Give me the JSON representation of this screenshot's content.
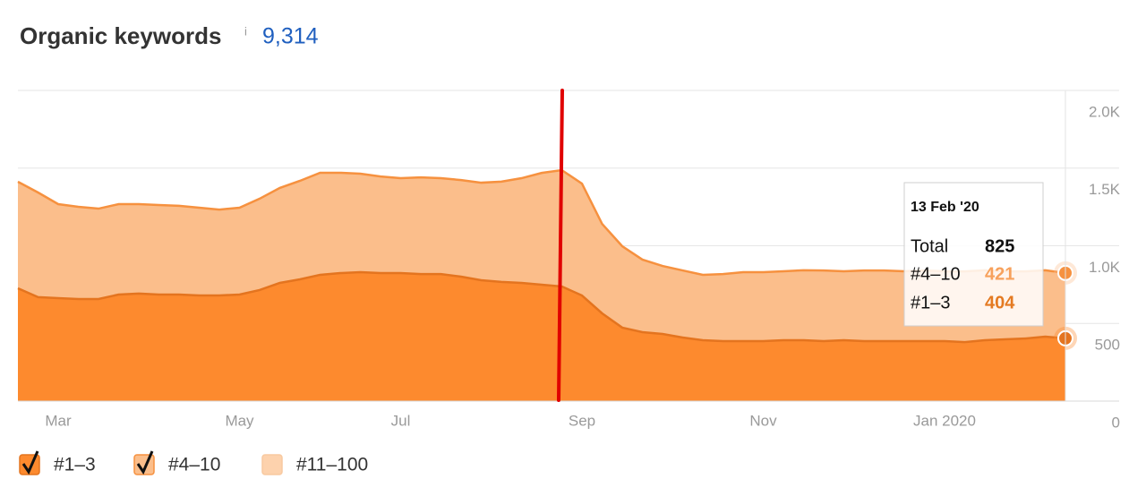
{
  "chart_data": {
    "type": "stacked_area",
    "title": "Organic keywords",
    "info_icon": "i",
    "headline_value": "9,314",
    "categories": [
      null,
      null,
      "Mar",
      null,
      null,
      null,
      null,
      null,
      null,
      null,
      null,
      "May",
      null,
      null,
      null,
      null,
      null,
      null,
      null,
      "Jul",
      null,
      null,
      null,
      null,
      null,
      null,
      null,
      null,
      "Sep",
      null,
      null,
      null,
      null,
      null,
      null,
      null,
      null,
      "Nov",
      null,
      null,
      null,
      null,
      null,
      null,
      null,
      null,
      "Jan 2020",
      null,
      null,
      null,
      null,
      null,
      null
    ],
    "series": [
      {
        "name": "#1–3",
        "color": "#fd8a2e",
        "line_color": "#e4741f",
        "visible": true,
        "values": [
          726,
          669,
          663,
          657,
          657,
          686,
          692,
          686,
          686,
          680,
          680,
          686,
          715,
          761,
          784,
          813,
          824,
          830,
          824,
          824,
          818,
          818,
          801,
          778,
          767,
          761,
          749,
          738,
          680,
          565,
          473,
          444,
          432,
          409,
          392,
          386,
          386,
          386,
          392,
          392,
          386,
          392,
          386,
          386,
          386,
          386,
          386,
          380,
          392,
          398,
          403,
          415,
          404
        ]
      },
      {
        "name": "#4–10",
        "color": "#fbbe8b",
        "line_color": "#f6913f",
        "visible": true,
        "values": [
          686,
          674,
          605,
          594,
          582,
          582,
          576,
          576,
          571,
          565,
          553,
          559,
          588,
          611,
          634,
          657,
          646,
          634,
          622,
          611,
          622,
          617,
          622,
          628,
          646,
          674,
          720,
          749,
          720,
          576,
          524,
          467,
          438,
          432,
          421,
          432,
          444,
          444,
          444,
          450,
          455,
          444,
          455,
          455,
          450,
          455,
          450,
          455,
          450,
          438,
          432,
          427,
          421
        ]
      },
      {
        "name": "#11–100",
        "color": "#fdd2ad",
        "visible": false
      }
    ],
    "ylim": [
      0,
      2000
    ],
    "yticks": [
      0,
      500,
      {
        "value": 1000,
        "label": "1.0K"
      },
      {
        "value": 1500,
        "label": "1.5K"
      },
      {
        "value": 2000,
        "label": "2.0K"
      }
    ],
    "grid": true,
    "tooltip": {
      "date": "13 Feb '20",
      "total_label": "Total",
      "total": 825
    }
  }
}
